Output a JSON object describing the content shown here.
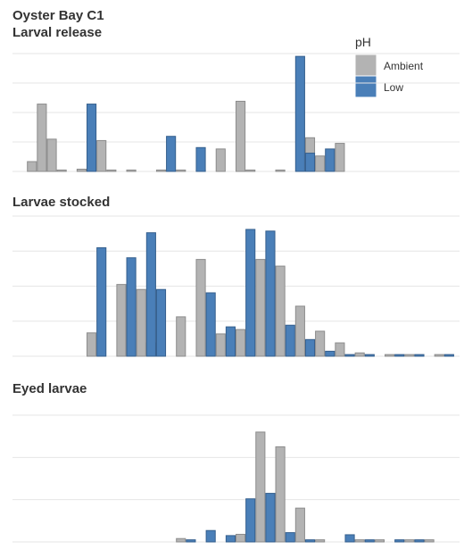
{
  "title": "Oyster Bay C1",
  "legend": {
    "title": "pH",
    "items": [
      {
        "name": "Ambient",
        "color": "#b3b3b3",
        "stroke": "#8c8c8c"
      },
      {
        "name": "Low",
        "color": "#4a7fb8",
        "stroke": "#355f8d"
      }
    ],
    "placement": "top-right"
  },
  "chart_data": [
    {
      "type": "bar",
      "title": "Larval release",
      "ylim": [
        0,
        4.2
      ],
      "grid": true,
      "xlabel": "",
      "ylabel": "",
      "bar_width": 1,
      "series": [
        {
          "name": "Ambient",
          "points": [
            {
              "x": 2,
              "y": 0.35
            },
            {
              "x": 3,
              "y": 2.4
            },
            {
              "x": 4,
              "y": 1.15
            },
            {
              "x": 5,
              "y": 0.05
            },
            {
              "x": 7,
              "y": 0.08
            },
            {
              "x": 9,
              "y": 1.1
            },
            {
              "x": 10,
              "y": 0.05
            },
            {
              "x": 12,
              "y": 0.05
            },
            {
              "x": 15,
              "y": 0.05
            },
            {
              "x": 17,
              "y": 0.05
            },
            {
              "x": 19,
              "y": 0.05
            },
            {
              "x": 21,
              "y": 0.8
            },
            {
              "x": 23,
              "y": 2.5
            },
            {
              "x": 24,
              "y": 0.05
            },
            {
              "x": 27,
              "y": 0.05
            },
            {
              "x": 30,
              "y": 1.2
            },
            {
              "x": 31,
              "y": 0.55
            },
            {
              "x": 33,
              "y": 1.0
            }
          ]
        },
        {
          "name": "Low",
          "points": [
            {
              "x": 8,
              "y": 2.4
            },
            {
              "x": 16,
              "y": 1.25
            },
            {
              "x": 19,
              "y": 0.85
            },
            {
              "x": 29,
              "y": 4.1
            },
            {
              "x": 30,
              "y": 0.65
            },
            {
              "x": 32,
              "y": 0.8
            }
          ]
        }
      ]
    },
    {
      "type": "bar",
      "title": "Larvae stocked",
      "ylim": [
        0,
        4.2
      ],
      "grid": true,
      "xlabel": "",
      "ylabel": "",
      "bar_width": 1,
      "series": [
        {
          "name": "Ambient",
          "points": [
            {
              "x": 8,
              "y": 0.7
            },
            {
              "x": 11,
              "y": 2.15
            },
            {
              "x": 13,
              "y": 2.0
            },
            {
              "x": 14,
              "y": 0.4
            },
            {
              "x": 17,
              "y": 1.18
            },
            {
              "x": 19,
              "y": 2.9
            },
            {
              "x": 21,
              "y": 0.67
            },
            {
              "x": 23,
              "y": 0.8
            },
            {
              "x": 25,
              "y": 2.9
            },
            {
              "x": 27,
              "y": 2.7
            },
            {
              "x": 29,
              "y": 1.5
            },
            {
              "x": 31,
              "y": 0.75
            },
            {
              "x": 33,
              "y": 0.4
            },
            {
              "x": 35,
              "y": 0.1
            },
            {
              "x": 38,
              "y": 0.05
            },
            {
              "x": 40,
              "y": 0.05
            },
            {
              "x": 43,
              "y": 0.05
            }
          ]
        },
        {
          "name": "Low",
          "points": [
            {
              "x": 9,
              "y": 3.25
            },
            {
              "x": 12,
              "y": 2.95
            },
            {
              "x": 14,
              "y": 3.7
            },
            {
              "x": 15,
              "y": 2.0
            },
            {
              "x": 20,
              "y": 1.9
            },
            {
              "x": 22,
              "y": 0.88
            },
            {
              "x": 24,
              "y": 3.8
            },
            {
              "x": 26,
              "y": 3.75
            },
            {
              "x": 28,
              "y": 0.93
            },
            {
              "x": 30,
              "y": 0.5
            },
            {
              "x": 32,
              "y": 0.15
            },
            {
              "x": 34,
              "y": 0.05
            },
            {
              "x": 36,
              "y": 0.05
            },
            {
              "x": 39,
              "y": 0.05
            },
            {
              "x": 41,
              "y": 0.05
            },
            {
              "x": 44,
              "y": 0.05
            }
          ]
        }
      ]
    },
    {
      "type": "bar",
      "title": "Eyed larvae",
      "ylim": [
        0,
        3.0
      ],
      "grid": true,
      "xlabel": "",
      "ylabel": "",
      "bar_width": 1,
      "series": [
        {
          "name": "Ambient",
          "points": [
            {
              "x": 17,
              "y": 0.08
            },
            {
              "x": 23,
              "y": 0.18
            },
            {
              "x": 25,
              "y": 2.6
            },
            {
              "x": 27,
              "y": 2.25
            },
            {
              "x": 29,
              "y": 0.8
            },
            {
              "x": 31,
              "y": 0.05
            },
            {
              "x": 35,
              "y": 0.05
            },
            {
              "x": 37,
              "y": 0.05
            },
            {
              "x": 40,
              "y": 0.05
            },
            {
              "x": 42,
              "y": 0.05
            }
          ]
        },
        {
          "name": "Low",
          "points": [
            {
              "x": 18,
              "y": 0.05
            },
            {
              "x": 20,
              "y": 0.27
            },
            {
              "x": 22,
              "y": 0.15
            },
            {
              "x": 24,
              "y": 1.02
            },
            {
              "x": 26,
              "y": 1.15
            },
            {
              "x": 28,
              "y": 0.22
            },
            {
              "x": 30,
              "y": 0.05
            },
            {
              "x": 34,
              "y": 0.17
            },
            {
              "x": 36,
              "y": 0.05
            },
            {
              "x": 39,
              "y": 0.05
            },
            {
              "x": 41,
              "y": 0.05
            }
          ]
        }
      ]
    }
  ]
}
